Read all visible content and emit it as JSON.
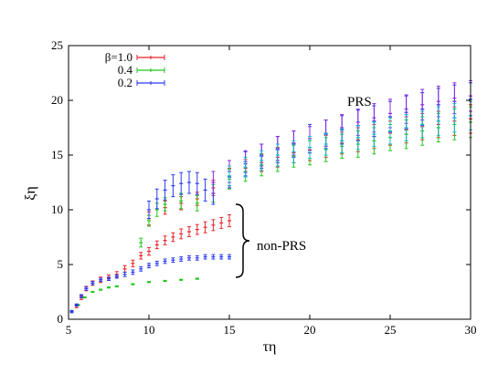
{
  "chart_data": {
    "type": "scatter",
    "xlabel": "τη",
    "ylabel": "ξη",
    "xlim": [
      5,
      30
    ],
    "ylim": [
      0,
      25
    ],
    "x_ticks": [
      5,
      10,
      15,
      20,
      25,
      30
    ],
    "y_ticks": [
      0,
      5,
      10,
      15,
      20,
      25
    ],
    "grid": false,
    "legend_position": "top-left",
    "legend_labels": [
      "β=1.0",
      "0.4",
      "0.2"
    ],
    "colors": {
      "beta_1_0": "#e8262a",
      "beta_0_4": "#22c81e",
      "beta_0_2": "#2a3cf0",
      "purple_dark": "#8a2be2",
      "cyan": "#17b7c7"
    },
    "annotations": [
      "PRS",
      "non-PRS"
    ],
    "series": [
      {
        "name": "β=1.0",
        "color": "#e8262a",
        "branches": [
          {
            "label": "non-PRS",
            "points": [
              [
                5.2,
                0.7,
                0.1
              ],
              [
                5.5,
                1.2,
                0.15
              ],
              [
                5.8,
                2.0,
                0.2
              ],
              [
                6.1,
                2.8,
                0.2
              ],
              [
                6.5,
                3.3,
                0.2
              ],
              [
                7.0,
                3.6,
                0.25
              ],
              [
                7.5,
                3.8,
                0.25
              ],
              [
                8.0,
                4.1,
                0.25
              ],
              [
                8.5,
                4.6,
                0.3
              ],
              [
                9.0,
                5.1,
                0.3
              ],
              [
                9.5,
                5.8,
                0.3
              ],
              [
                10.0,
                6.2,
                0.35
              ],
              [
                10.5,
                6.8,
                0.35
              ],
              [
                11.0,
                7.2,
                0.4
              ],
              [
                11.5,
                7.5,
                0.4
              ],
              [
                12.0,
                7.8,
                0.45
              ],
              [
                12.5,
                8.0,
                0.45
              ],
              [
                13.0,
                8.2,
                0.45
              ],
              [
                13.5,
                8.4,
                0.5
              ],
              [
                14.0,
                8.6,
                0.5
              ],
              [
                14.5,
                8.8,
                0.5
              ],
              [
                15.0,
                9.0,
                0.55
              ]
            ]
          },
          {
            "label": "PRS",
            "points": [
              [
                10.0,
                9.2,
                0.6
              ],
              [
                11.0,
                10.2,
                0.6
              ],
              [
                12.0,
                10.6,
                0.6
              ],
              [
                13.0,
                11.0,
                0.6
              ],
              [
                14.0,
                12.0,
                0.7
              ],
              [
                15.0,
                13.0,
                0.8
              ],
              [
                16.0,
                13.8,
                0.8
              ],
              [
                17.0,
                14.3,
                0.8
              ],
              [
                18.0,
                14.8,
                0.9
              ],
              [
                19.0,
                15.2,
                0.9
              ],
              [
                20.0,
                15.5,
                1.0
              ],
              [
                21.0,
                15.8,
                1.0
              ],
              [
                22.0,
                16.1,
                1.0
              ],
              [
                23.0,
                16.4,
                1.1
              ],
              [
                24.0,
                16.7,
                1.1
              ],
              [
                25.0,
                17.0,
                1.1
              ],
              [
                26.0,
                17.3,
                1.2
              ],
              [
                27.0,
                17.6,
                1.2
              ],
              [
                28.0,
                17.8,
                1.2
              ],
              [
                29.0,
                18.1,
                1.3
              ],
              [
                30.0,
                18.3,
                1.3
              ]
            ]
          }
        ]
      },
      {
        "name": "0.4",
        "color": "#22c81e",
        "branches": [
          {
            "label": "non-PRS",
            "points": [
              [
                5.2,
                0.7,
                0.05
              ],
              [
                5.6,
                1.3,
                0.05
              ],
              [
                6.0,
                2.0,
                0.05
              ],
              [
                6.5,
                2.5,
                0.05
              ],
              [
                7.0,
                2.7,
                0.05
              ],
              [
                7.5,
                2.9,
                0.05
              ],
              [
                8.0,
                3.0,
                0.05
              ],
              [
                9.0,
                3.2,
                0.05
              ],
              [
                10.0,
                3.4,
                0.05
              ],
              [
                11.0,
                3.5,
                0.05
              ],
              [
                12.0,
                3.6,
                0.05
              ],
              [
                13.0,
                3.7,
                0.05
              ]
            ]
          },
          {
            "label": "PRS",
            "points": [
              [
                9.5,
                7.0,
                0.4
              ],
              [
                10.0,
                9.0,
                0.5
              ],
              [
                10.5,
                10.0,
                0.6
              ],
              [
                11.0,
                10.5,
                0.6
              ],
              [
                12.0,
                10.8,
                0.7
              ],
              [
                13.0,
                10.6,
                0.7
              ],
              [
                14.0,
                11.5,
                0.8
              ],
              [
                15.0,
                12.8,
                0.9
              ],
              [
                16.0,
                13.5,
                0.9
              ],
              [
                17.0,
                14.1,
                1.0
              ],
              [
                18.0,
                14.5,
                1.0
              ],
              [
                19.0,
                14.9,
                1.0
              ],
              [
                20.0,
                15.2,
                1.1
              ],
              [
                21.0,
                15.5,
                1.1
              ],
              [
                22.0,
                15.8,
                1.1
              ],
              [
                23.0,
                16.0,
                1.2
              ],
              [
                24.0,
                16.3,
                1.2
              ],
              [
                25.0,
                16.6,
                1.2
              ],
              [
                26.0,
                16.9,
                1.3
              ],
              [
                27.0,
                17.2,
                1.3
              ],
              [
                28.0,
                17.5,
                1.3
              ],
              [
                29.0,
                17.8,
                1.4
              ],
              [
                30.0,
                18.0,
                1.4
              ]
            ]
          }
        ]
      },
      {
        "name": "0.2",
        "color": "#2a3cf0",
        "branches": [
          {
            "label": "non-PRS",
            "points": [
              [
                5.2,
                0.7,
                0.1
              ],
              [
                5.5,
                1.3,
                0.1
              ],
              [
                5.8,
                2.1,
                0.15
              ],
              [
                6.1,
                2.8,
                0.15
              ],
              [
                6.5,
                3.3,
                0.15
              ],
              [
                7.0,
                3.6,
                0.15
              ],
              [
                7.5,
                3.7,
                0.15
              ],
              [
                8.0,
                3.9,
                0.15
              ],
              [
                8.5,
                4.1,
                0.2
              ],
              [
                9.0,
                4.3,
                0.2
              ],
              [
                9.5,
                4.6,
                0.2
              ],
              [
                10.0,
                4.9,
                0.2
              ],
              [
                10.5,
                5.1,
                0.2
              ],
              [
                11.0,
                5.3,
                0.2
              ],
              [
                11.5,
                5.4,
                0.2
              ],
              [
                12.0,
                5.5,
                0.2
              ],
              [
                12.5,
                5.6,
                0.2
              ],
              [
                13.0,
                5.6,
                0.2
              ],
              [
                13.5,
                5.7,
                0.2
              ],
              [
                14.0,
                5.7,
                0.2
              ],
              [
                14.5,
                5.7,
                0.2
              ],
              [
                15.0,
                5.7,
                0.2
              ]
            ]
          },
          {
            "label": "PRS",
            "points": [
              [
                10.0,
                10.0,
                0.8
              ],
              [
                10.5,
                11.0,
                0.9
              ],
              [
                11.0,
                11.8,
                0.9
              ],
              [
                11.5,
                12.2,
                1.0
              ],
              [
                12.0,
                12.4,
                1.0
              ],
              [
                12.5,
                12.5,
                1.0
              ],
              [
                13.0,
                12.4,
                1.0
              ],
              [
                13.5,
                11.8,
                1.0
              ],
              [
                14.0,
                11.5,
                1.0
              ],
              [
                15.0,
                13.0,
                1.0
              ],
              [
                16.0,
                14.2,
                1.1
              ],
              [
                17.0,
                14.9,
                1.1
              ],
              [
                18.0,
                15.5,
                1.2
              ],
              [
                19.0,
                16.0,
                1.2
              ],
              [
                20.0,
                16.5,
                1.3
              ],
              [
                21.0,
                16.9,
                1.3
              ],
              [
                22.0,
                17.3,
                1.3
              ],
              [
                23.0,
                17.7,
                1.4
              ],
              [
                24.0,
                18.1,
                1.4
              ],
              [
                25.0,
                18.5,
                1.4
              ],
              [
                26.0,
                18.9,
                1.5
              ],
              [
                27.0,
                19.2,
                1.5
              ],
              [
                28.0,
                19.6,
                1.5
              ],
              [
                29.0,
                19.9,
                1.5
              ],
              [
                30.0,
                20.1,
                1.5
              ]
            ]
          }
        ]
      },
      {
        "name": "",
        "color": "#8a2be2",
        "branches": [
          {
            "label": "PRS",
            "points": [
              [
                14.0,
                12.5,
                1.0
              ],
              [
                15.0,
                13.5,
                1.0
              ],
              [
                16.0,
                14.4,
                1.0
              ],
              [
                17.0,
                15.0,
                1.0
              ],
              [
                18.0,
                15.6,
                1.1
              ],
              [
                19.0,
                16.1,
                1.1
              ],
              [
                20.0,
                16.5,
                1.1
              ],
              [
                21.0,
                17.0,
                1.2
              ],
              [
                22.0,
                17.5,
                1.2
              ],
              [
                23.0,
                18.0,
                1.2
              ],
              [
                24.0,
                18.4,
                1.3
              ],
              [
                25.0,
                18.8,
                1.3
              ],
              [
                26.0,
                19.2,
                1.3
              ],
              [
                27.0,
                19.6,
                1.4
              ],
              [
                28.0,
                19.9,
                1.4
              ],
              [
                29.0,
                20.2,
                1.4
              ],
              [
                30.0,
                20.4,
                1.4
              ]
            ]
          }
        ]
      },
      {
        "name": "",
        "color": "#17b7c7",
        "branches": [
          {
            "label": "PRS",
            "points": [
              [
                15.0,
                13.1,
                0.9
              ],
              [
                16.0,
                13.9,
                0.9
              ],
              [
                17.0,
                14.5,
                0.9
              ],
              [
                18.0,
                15.0,
                1.0
              ],
              [
                19.0,
                15.3,
                1.0
              ],
              [
                20.0,
                15.7,
                1.0
              ],
              [
                21.0,
                16.0,
                1.0
              ],
              [
                22.0,
                16.3,
                1.1
              ],
              [
                23.0,
                16.6,
                1.1
              ],
              [
                24.0,
                16.9,
                1.1
              ],
              [
                25.0,
                17.2,
                1.2
              ],
              [
                26.0,
                17.5,
                1.2
              ],
              [
                27.0,
                17.8,
                1.2
              ],
              [
                28.0,
                18.1,
                1.3
              ],
              [
                29.0,
                18.4,
                1.3
              ],
              [
                30.0,
                18.6,
                1.3
              ]
            ]
          }
        ]
      }
    ]
  }
}
